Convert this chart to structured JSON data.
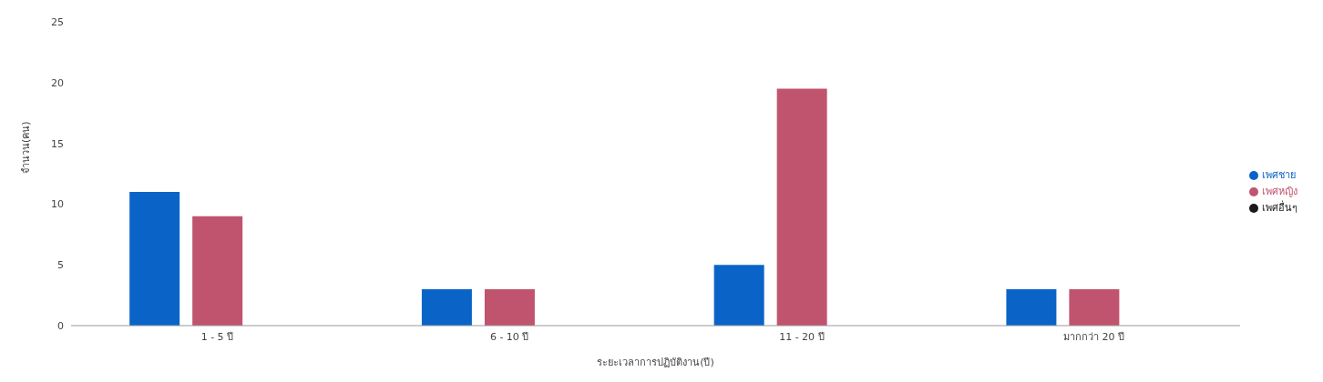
{
  "chart_data": {
    "type": "bar",
    "xlabel": "ระยะเวลาการปฏิบัติงาน(ปี)",
    "ylabel": "จำนวน(คน)",
    "categories": [
      "1 - 5 ปี",
      "6 - 10 ปี",
      "11 - 20 ปี",
      "มากกว่า 20 ปี"
    ],
    "series": [
      {
        "name": "เพศชาย",
        "color": "#0a64c8",
        "values": [
          11,
          3,
          5,
          3
        ]
      },
      {
        "name": "เพศหญิง",
        "color": "#c0546e",
        "values": [
          9,
          3,
          19.5,
          3
        ]
      },
      {
        "name": "เพศอื่นๆ",
        "color": "#1a1a1a",
        "values": [
          0,
          0,
          0,
          0
        ]
      }
    ],
    "ylim": [
      0,
      25
    ],
    "yticks": [
      0,
      5,
      10,
      15,
      20,
      25
    ],
    "grid": false,
    "legend": "right"
  }
}
